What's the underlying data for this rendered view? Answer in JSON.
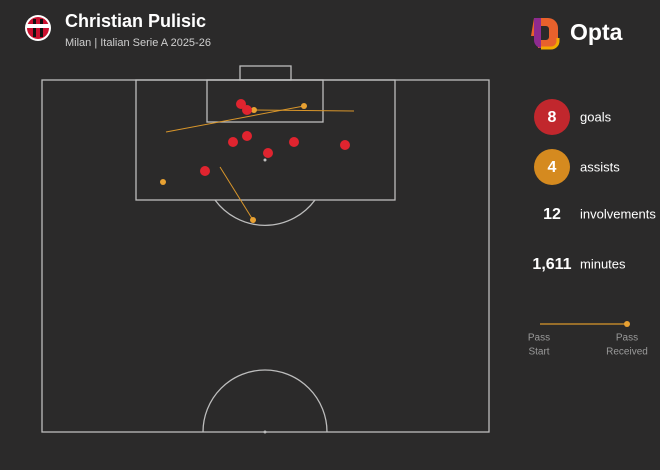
{
  "header": {
    "title": "Christian Pulisic",
    "subtitle": "Milan | Italian Serie A 2025-26",
    "brand": "Opta"
  },
  "stats": [
    {
      "value": "8",
      "label": "goals"
    },
    {
      "value": "4",
      "label": "assists"
    },
    {
      "value": "12",
      "label": "involvements"
    },
    {
      "value": "1,611",
      "label": "minutes"
    }
  ],
  "legend": {
    "start": [
      "Pass",
      "Start"
    ],
    "end": [
      "Pass",
      "Received"
    ]
  }
}
